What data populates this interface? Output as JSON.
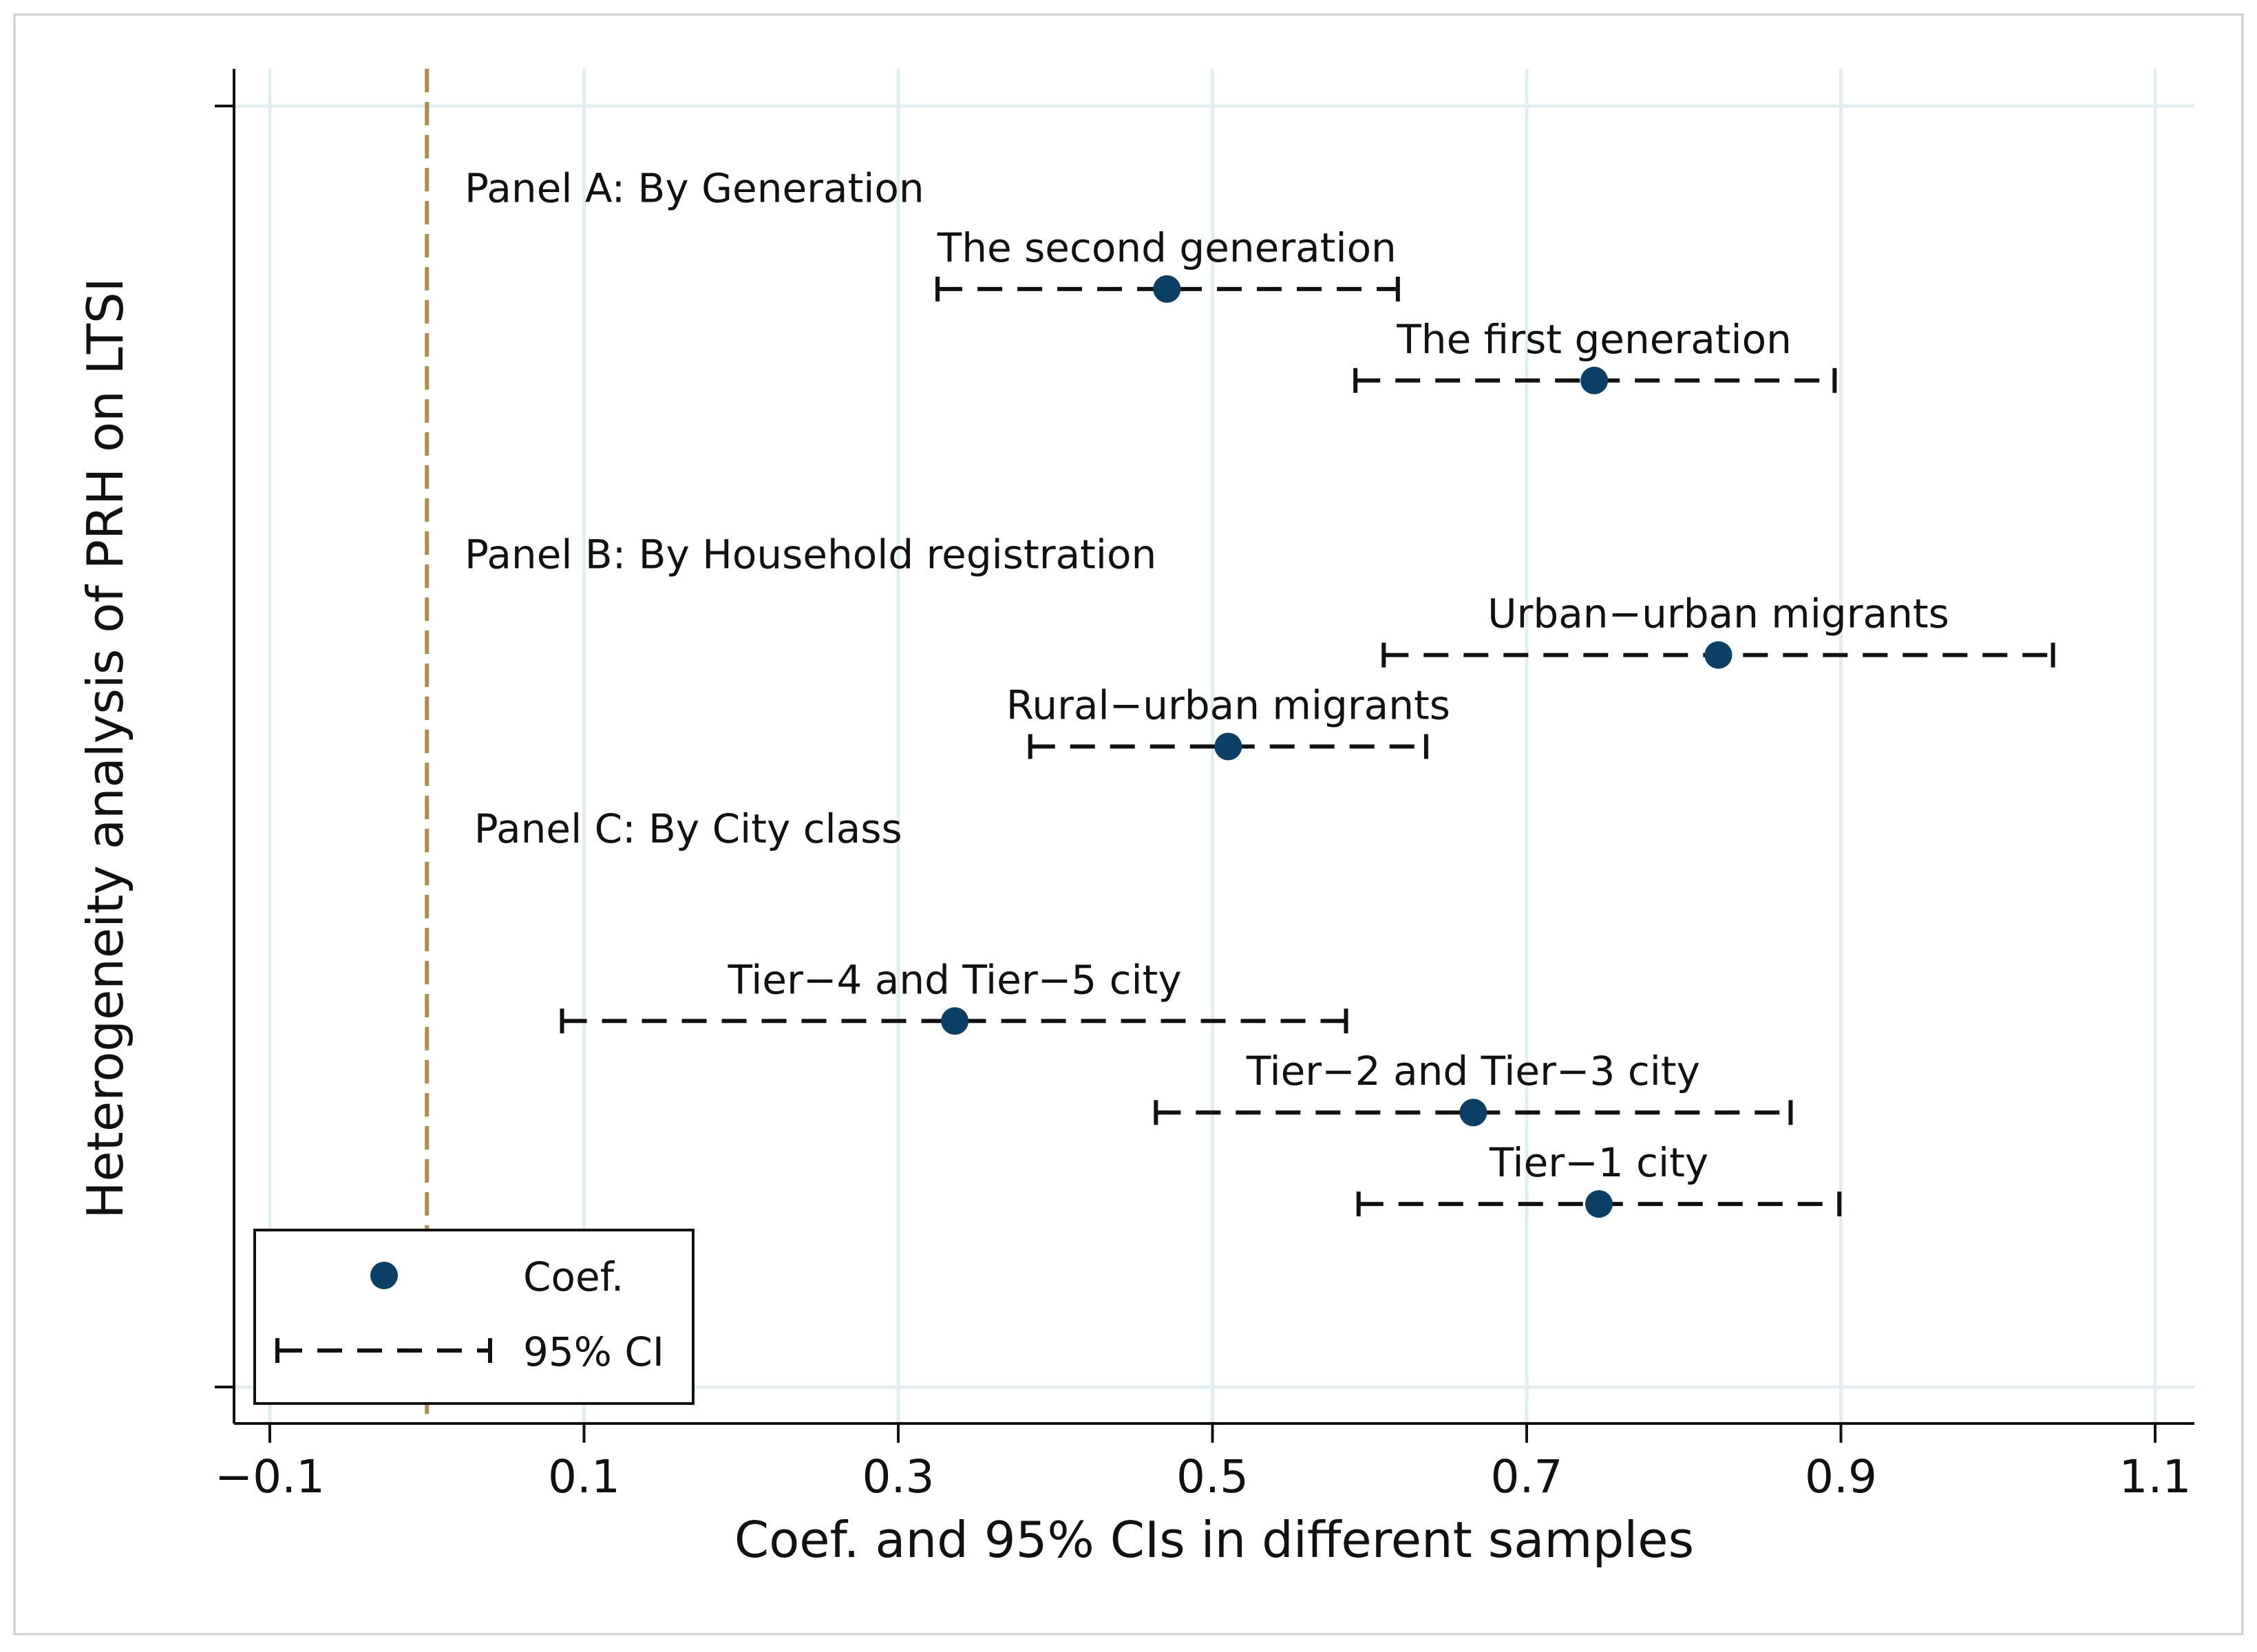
{
  "chart_data": {
    "type": "scatter",
    "subtype": "coefficient plot with 95% confidence intervals",
    "xlabel": "Coef. and 95% CIs in different samples",
    "ylabel": "Heterogeneity analysis of PRH on LTSI",
    "xlim": [
      -0.125,
      1.125
    ],
    "xticks": [
      -0.1,
      0.1,
      0.3,
      0.5,
      0.7,
      0.9,
      1.1
    ],
    "xtick_labels": [
      "−0.1",
      "0.1",
      "0.3",
      "0.5",
      "0.7",
      "0.9",
      "1.1"
    ],
    "ylim": [
      0,
      14
    ],
    "reference_line": {
      "x": 0,
      "style": "dashed",
      "color": "#b08d4c"
    },
    "grid": true,
    "panel_headers": [
      {
        "label": "Panel A: By Generation",
        "y": 12.95,
        "x": 0.024
      },
      {
        "label": "Panel B: By Household registration",
        "y": 8.95,
        "x": 0.024
      },
      {
        "label": "Panel C: By City class",
        "y": 5.95,
        "x": 0.03
      }
    ],
    "points": [
      {
        "label": "The second generation",
        "coef": 0.471,
        "ci_low": 0.325,
        "ci_high": 0.618,
        "y": 12
      },
      {
        "label": "The first generation",
        "coef": 0.743,
        "ci_low": 0.591,
        "ci_high": 0.896,
        "y": 11
      },
      {
        "label": "Urban−urban migrants",
        "coef": 0.822,
        "ci_low": 0.609,
        "ci_high": 1.035,
        "y": 8
      },
      {
        "label": "Rural−urban migrants",
        "coef": 0.51,
        "ci_low": 0.384,
        "ci_high": 0.636,
        "y": 7
      },
      {
        "label": "Tier−4 and Tier−5 city",
        "coef": 0.336,
        "ci_low": 0.086,
        "ci_high": 0.585,
        "y": 4
      },
      {
        "label": "Tier−2 and Tier−3 city",
        "coef": 0.666,
        "ci_low": 0.464,
        "ci_high": 0.868,
        "y": 3
      },
      {
        "label": "Tier−1 city",
        "coef": 0.746,
        "ci_low": 0.593,
        "ci_high": 0.899,
        "y": 2
      }
    ],
    "legend": {
      "placement": "bottom-left",
      "entries": [
        {
          "label": "Coef.",
          "marker": "circle"
        },
        {
          "label": "95% CI",
          "marker": "dashed-capped-line"
        }
      ]
    },
    "colors": {
      "marker": "#0b3f66",
      "ci_line": "#111111",
      "grid": "#e2edee",
      "axis": "#111111",
      "reference": "#b08d4c",
      "frame": "#cfcfcf"
    }
  }
}
